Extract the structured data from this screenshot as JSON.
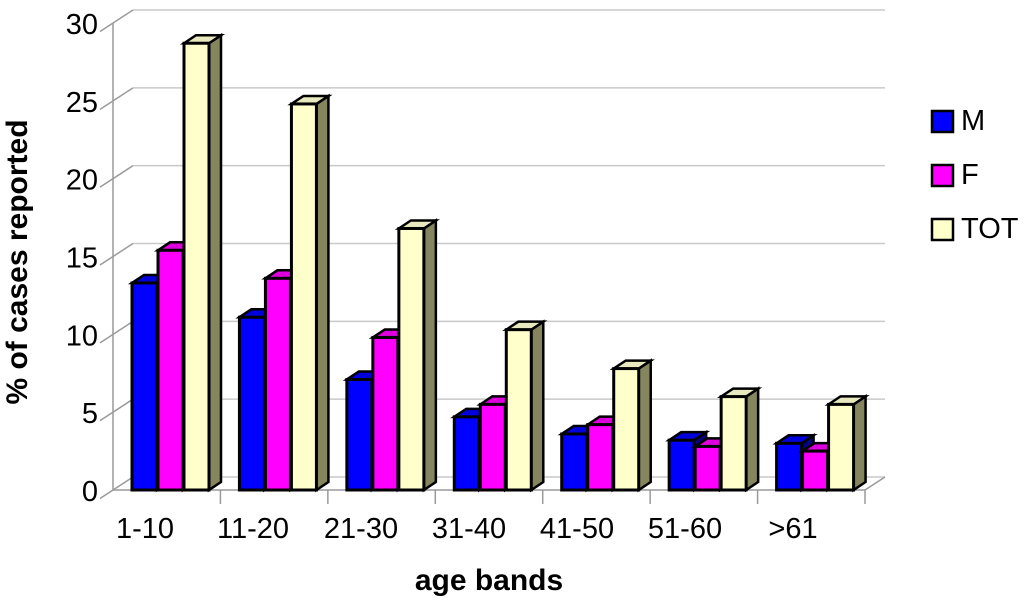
{
  "chart_data": {
    "type": "bar",
    "style": "3d-clustered-column",
    "title": "",
    "xlabel": "age bands",
    "ylabel": "% of cases reported",
    "categories": [
      "1-10",
      "11-20",
      "21-30",
      "31-40",
      "41-50",
      "51-60",
      ">61"
    ],
    "series": [
      {
        "name": "M",
        "color": "#0000FF",
        "top_color": "#0000DD",
        "side_color": "#000080",
        "values": [
          13.3,
          11.1,
          7.1,
          4.7,
          3.6,
          3.2,
          3.0
        ]
      },
      {
        "name": "F",
        "color": "#FF00FF",
        "top_color": "#DD00DD",
        "side_color": "#900090",
        "values": [
          15.4,
          13.6,
          9.8,
          5.5,
          4.2,
          2.8,
          2.5
        ]
      },
      {
        "name": "TOT",
        "color": "#FFFFCC",
        "top_color": "#E9E9C0",
        "side_color": "#85855E",
        "values": [
          28.7,
          24.8,
          16.8,
          10.3,
          7.8,
          6.0,
          5.5
        ]
      }
    ],
    "ylim": [
      0,
      30
    ],
    "ytick_step": 5,
    "yticks": [
      0,
      5,
      10,
      15,
      20,
      25,
      30
    ],
    "grid": "horizontal",
    "legend_position": "right",
    "background_color": "#FFFFFF",
    "gridline_color": "#C9C9C9",
    "axis_color": "#9A9A9A",
    "bar_outline_color": "#000000",
    "text_color": "#000000"
  }
}
